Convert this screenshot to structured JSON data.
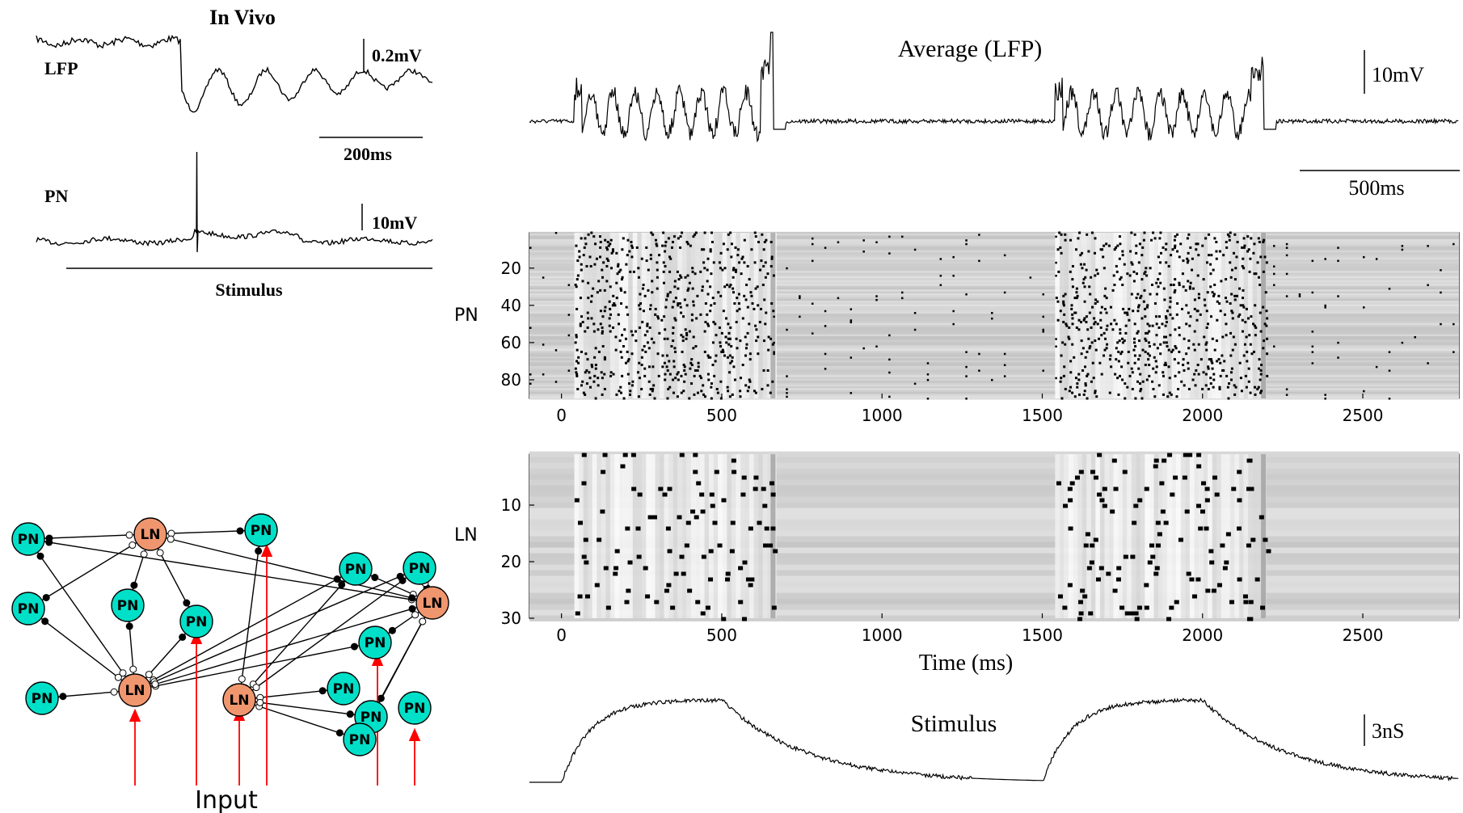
{
  "invivo": {
    "title": "In Vivo",
    "lfp_label": "LFP",
    "pn_label": "PN",
    "scale_lfp": "0.2mV",
    "scale_time": "200ms",
    "scale_pn": "10mV",
    "stimulus_label": "Stimulus"
  },
  "average": {
    "title": "Average (LFP)",
    "scale_v": "10mV",
    "scale_t": "500ms"
  },
  "stimulus_panel": {
    "title": "Stimulus",
    "scale": "3nS"
  },
  "network": {
    "input_label": "Input",
    "pn_text": "PN",
    "ln_text": "LN"
  },
  "colors": {
    "pn": "#00e0c8",
    "ln": "#f0966e",
    "input_arrow": "#ff0000"
  },
  "chart_data": [
    {
      "type": "heatmap",
      "ylabel": "PN",
      "x_ticks": [
        0,
        500,
        1000,
        1500,
        2000,
        2500
      ],
      "y_ticks": [
        20,
        40,
        60,
        80
      ],
      "xlim": [
        -100,
        2800
      ],
      "ylim": [
        1,
        90
      ],
      "active_windows_ms": [
        [
          40,
          660
        ],
        [
          1540,
          2190
        ]
      ]
    },
    {
      "type": "heatmap",
      "ylabel": "LN",
      "xlabel": "Time (ms)",
      "x_ticks": [
        0,
        500,
        1000,
        1500,
        2000,
        2500
      ],
      "y_ticks": [
        10,
        20,
        30
      ],
      "xlim": [
        -100,
        2800
      ],
      "ylim": [
        1,
        30
      ],
      "active_windows_ms": [
        [
          40,
          660
        ],
        [
          1540,
          2190
        ]
      ]
    }
  ]
}
